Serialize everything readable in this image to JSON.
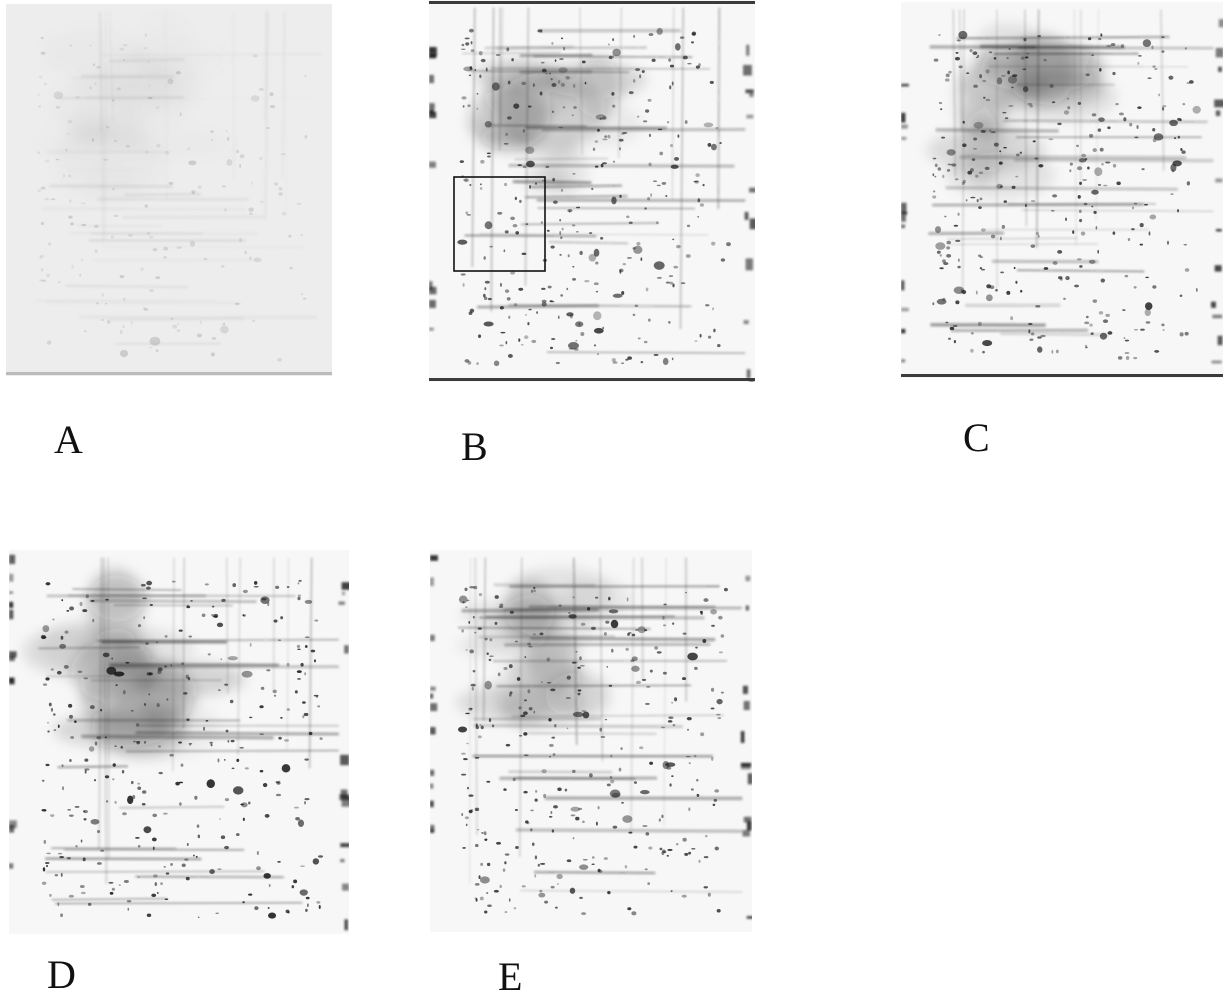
{
  "panels": [
    {
      "id": "a",
      "label": "A",
      "intensity": 0.35,
      "highlight_box": false
    },
    {
      "id": "b",
      "label": "B",
      "intensity": 0.85,
      "highlight_box": true
    },
    {
      "id": "c",
      "label": "C",
      "intensity": 0.9,
      "highlight_box": false
    },
    {
      "id": "d",
      "label": "D",
      "intensity": 0.95,
      "highlight_box": false
    },
    {
      "id": "e",
      "label": "E",
      "intensity": 0.9,
      "highlight_box": false
    }
  ],
  "colors": {
    "background": "#ffffff",
    "stain": "#1a1a1a",
    "faint_stain": "#8a8a8a",
    "gel_base_a": "#ededed",
    "gel_base": "#f7f7f7"
  }
}
